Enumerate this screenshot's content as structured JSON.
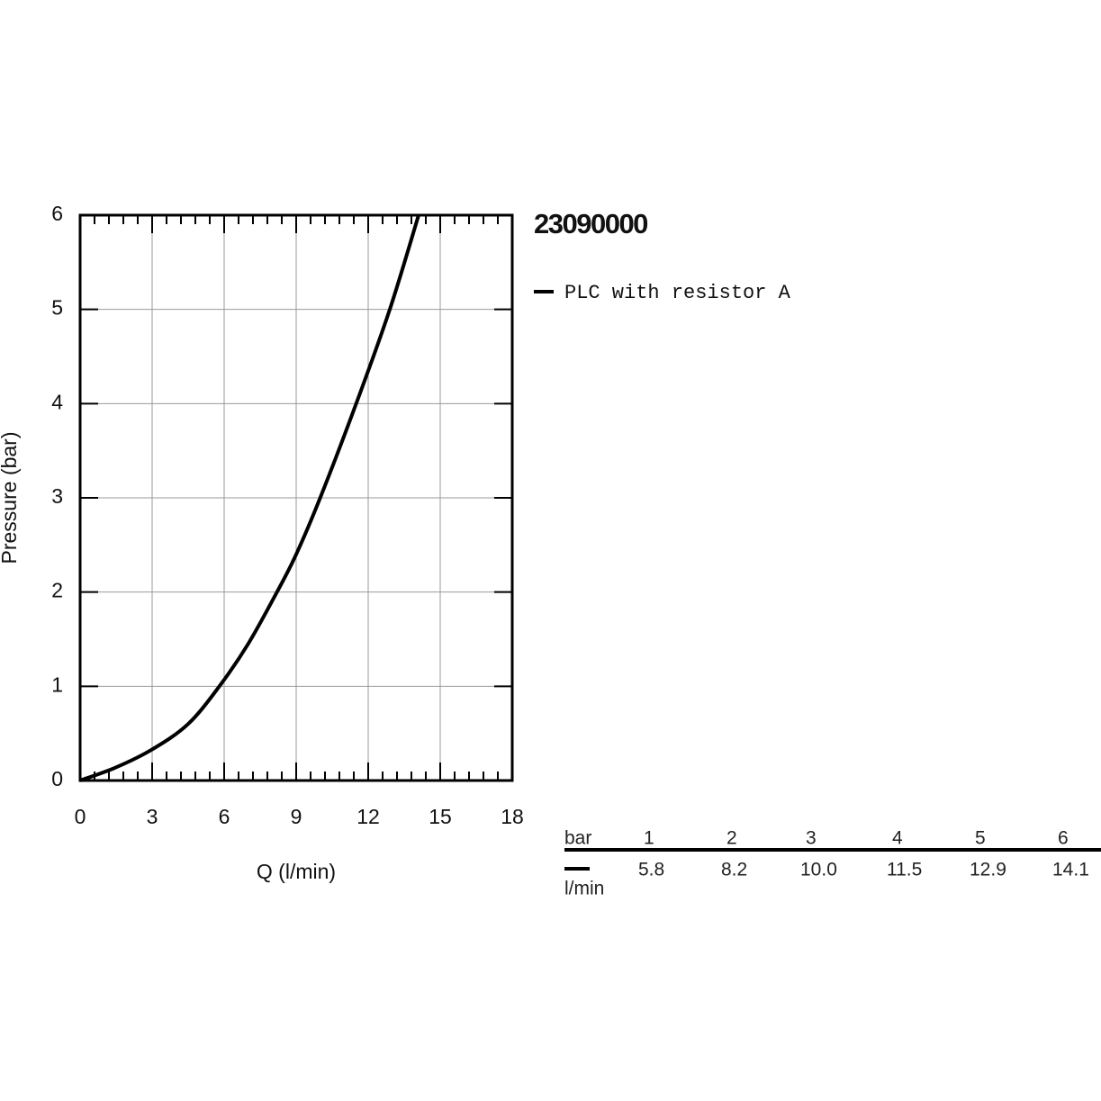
{
  "chart_data": {
    "type": "line",
    "title": "23090000",
    "x_label": "Q (l/min)",
    "y_label": "Pressure (bar)",
    "x": [
      0,
      1.5,
      3,
      4.5,
      5.8,
      7,
      8.2,
      9,
      10,
      11.5,
      12.9,
      14.1
    ],
    "series": [
      {
        "name": "PLC with resistor A",
        "color": "#000000",
        "values": [
          0,
          0.14,
          0.33,
          0.6,
          1,
          1.45,
          2,
          2.4,
          3,
          4,
          5,
          6
        ]
      }
    ],
    "xlim": [
      0,
      18
    ],
    "xticks": [
      0,
      3,
      6,
      9,
      12,
      15,
      18
    ],
    "ylim": [
      0,
      6
    ],
    "yticks": [
      0,
      1,
      2,
      3,
      4,
      5,
      6
    ],
    "grid": true
  },
  "table": {
    "header_unit": "bar",
    "columns": [
      "1",
      "2",
      "3",
      "4",
      "5",
      "6"
    ],
    "row_unit": "l/min",
    "row": [
      "5.8",
      "8.2",
      "10.0",
      "11.5",
      "12.9",
      "14.1"
    ]
  }
}
